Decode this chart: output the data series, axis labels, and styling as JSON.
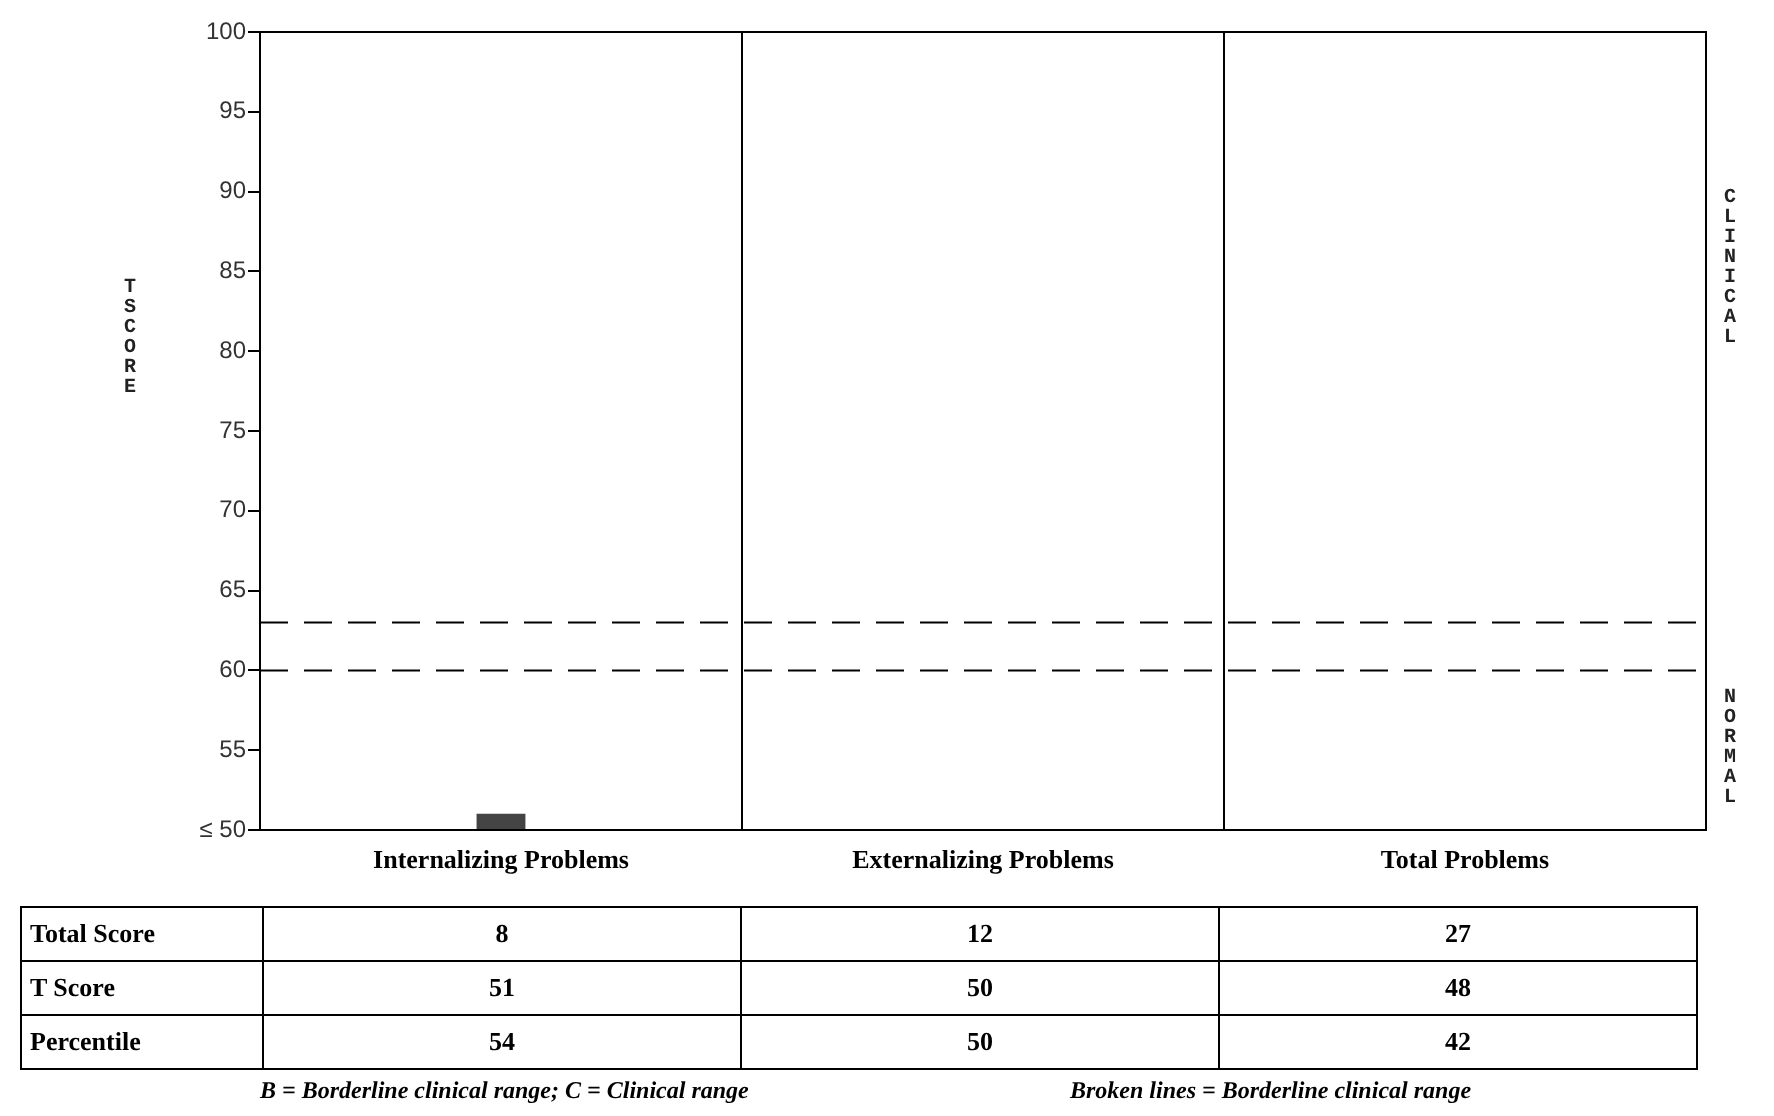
{
  "chart_data": {
    "type": "bar",
    "ylabel": "T SCORE",
    "categories": [
      "Internalizing Problems",
      "Externalizing Problems",
      "Total Problems"
    ],
    "values": [
      51,
      50,
      50
    ],
    "color": "#444444",
    "ylim": [
      50,
      100
    ],
    "yticks": [
      {
        "value": 50,
        "label": "≤ 50"
      },
      55,
      60,
      65,
      70,
      75,
      80,
      85,
      90,
      95,
      100
    ],
    "grid": "x",
    "legend": false,
    "ref_lines": [
      {
        "axis": "y",
        "value": 63,
        "line_style": "dashed",
        "color": "#000000"
      },
      {
        "axis": "y",
        "value": 60,
        "line_style": "dashed",
        "color": "#000000"
      }
    ],
    "annotations": [
      "CLINICAL",
      "NORMAL",
      "Total Score",
      "8",
      "12",
      "27",
      "T Score",
      "51",
      "50",
      "48",
      "Percentile",
      "54",
      "50",
      "42",
      "B = Borderline clinical range;  C = Clinical range",
      "Broken lines = Borderline clinical range"
    ]
  }
}
